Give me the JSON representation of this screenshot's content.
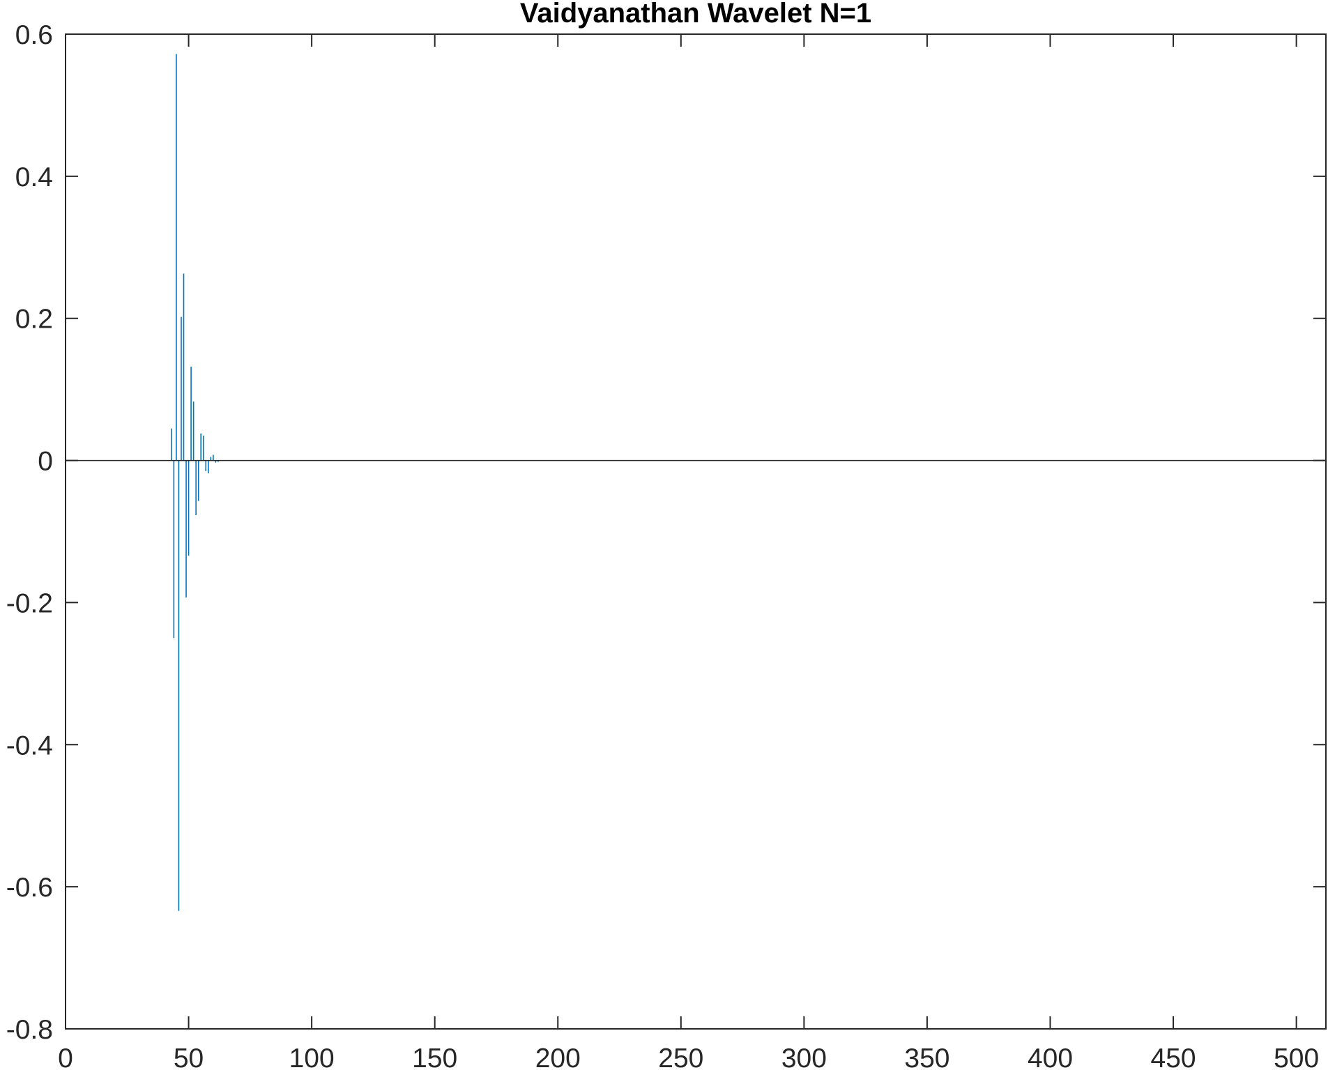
{
  "chart_data": {
    "type": "stem",
    "title": "Vaidyanathan Wavelet N=1",
    "xlabel": "",
    "ylabel": "",
    "xlim": [
      0,
      512
    ],
    "ylim": [
      -0.8,
      0.6
    ],
    "xticks": [
      0,
      50,
      100,
      150,
      200,
      250,
      300,
      350,
      400,
      450,
      500
    ],
    "xtick_labels": [
      "0",
      "50",
      "100",
      "150",
      "200",
      "250",
      "300",
      "350",
      "400",
      "450",
      "500"
    ],
    "yticks": [
      -0.8,
      -0.6,
      -0.4,
      -0.2,
      0,
      0.2,
      0.4,
      0.6
    ],
    "ytick_labels": [
      "-0.8",
      "-0.6",
      "-0.4",
      "-0.2",
      "0",
      "0.2",
      "0.4",
      "0.6"
    ],
    "grid": false,
    "legend": "none",
    "baseline": 0,
    "series": [
      {
        "color": "#0072BD",
        "x": [
          43,
          44,
          45,
          46,
          47,
          48,
          49,
          50,
          51,
          52,
          53,
          54,
          55,
          56,
          57,
          58,
          59,
          60,
          61,
          62
        ],
        "y": [
          0.045,
          -0.25,
          0.572,
          -0.634,
          0.202,
          0.263,
          -0.193,
          -0.134,
          0.132,
          0.083,
          -0.077,
          -0.057,
          0.038,
          0.035,
          -0.015,
          -0.018,
          0.005,
          0.008,
          -0.003,
          -0.002
        ]
      }
    ]
  }
}
